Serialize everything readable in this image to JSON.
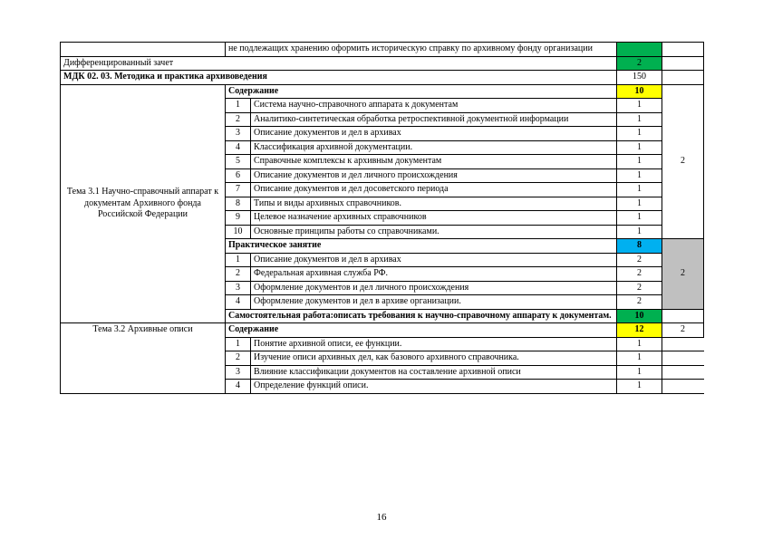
{
  "colors": {
    "green": "#00b050",
    "yellow": "#ffff00",
    "blue": "#00b0f0",
    "gray": "#c0c0c0",
    "border": "#000000",
    "text": "#000000",
    "bg": "#ffffff"
  },
  "page_number": "16",
  "rows": {
    "r0": {
      "col1": "",
      "col23": "не подлежащих хранению оформить историческую справку по архивному фонду организации",
      "col4": "",
      "col4_class": "bg-green",
      "col5": ""
    },
    "r1": {
      "span123": "Дифференцированный зачет",
      "col4": "2",
      "col4_class": "bg-green",
      "col5": ""
    },
    "r2": {
      "span123": "МДК 02. 03. Методика и практика архивоведения",
      "bold": true,
      "col4": "150",
      "col5": ""
    },
    "r3": {
      "section_title": "Тема 3.1 Научно-справочный аппарат к документам Архивного фонда Российской Федерации",
      "label": "Содержание",
      "bold": true,
      "col4": "10",
      "col4_class": "bg-yellow"
    },
    "r3_side": {
      "col5": "2",
      "rowspan": 11
    },
    "items31": [
      {
        "n": "1",
        "txt": "Система научно-справочного аппарата к документам",
        "h": "1"
      },
      {
        "n": "2",
        "txt": "Аналитико-синтетическая обработка ретроспективной документной информации",
        "h": "1"
      },
      {
        "n": "3",
        "txt": "Описание документов и дел в архивах",
        "h": "1"
      },
      {
        "n": "4",
        "txt": "Классификация архивной документации.",
        "h": "1"
      },
      {
        "n": "5",
        "txt": "Справочные комплексы к архивным документам",
        "h": "1"
      },
      {
        "n": "6",
        "txt": "Описание документов и дел личного происхождения",
        "h": "1"
      },
      {
        "n": "7",
        "txt": "Описание документов и дел досоветского периода",
        "h": "1"
      },
      {
        "n": "8",
        "txt": "Типы и виды архивных справочников.",
        "h": "1"
      },
      {
        "n": "9",
        "txt": "Целевое назначение архивных справочников",
        "h": "1"
      },
      {
        "n": "10",
        "txt": "Основные принципы работы со справочниками.",
        "h": "1"
      }
    ],
    "r_pr": {
      "label": "Практическое занятие",
      "bold": true,
      "col4": "8",
      "col4_class": "bg-blue"
    },
    "r_pr_side": {
      "col5": "2",
      "col5_class": "bg-gray",
      "rowspan": 5
    },
    "pract31": [
      {
        "n": "1",
        "txt": "Описание  документов и дел в архивах",
        "h": "2"
      },
      {
        "n": "2",
        "txt": "Федеральная архивная служба РФ.",
        "h": "2"
      },
      {
        "n": "3",
        "txt": "Оформление документов и дел личного происхождения",
        "h": "2"
      },
      {
        "n": "4",
        "txt": "Оформление документов и дел в архиве организации.",
        "h": "2"
      }
    ],
    "r_self": {
      "label": "Самостоятельная работа:описать требования к научно-справочному аппарату к документам.",
      "bold": true,
      "col4": "10",
      "col4_class": "bg-green",
      "col5": ""
    },
    "r32": {
      "section_title": "Тема 3.2 Архивные описи",
      "label": "Содержание",
      "bold": true,
      "col4": "12",
      "col4_class": "bg-yellow",
      "col5": "2"
    },
    "items32": [
      {
        "n": "1",
        "txt": "Понятие архивной описи, ее функции.",
        "h": "1"
      },
      {
        "n": "2",
        "txt": "Изучение описи архивных дел, как базового архивного справочника.",
        "h": "1"
      },
      {
        "n": "3",
        "txt": "Влияние классификации документов на составление архивной описи",
        "h": "1"
      },
      {
        "n": "4",
        "txt": "Определение функций описи.",
        "h": "1"
      }
    ]
  }
}
